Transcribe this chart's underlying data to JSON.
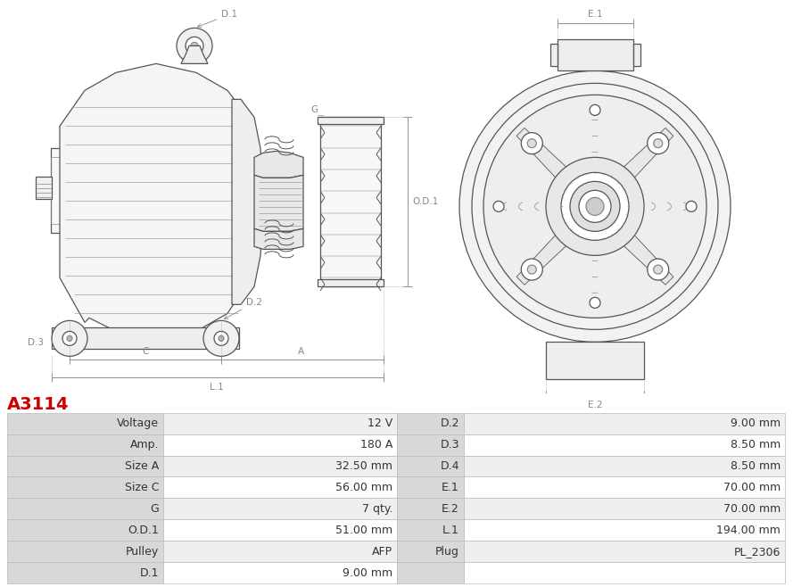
{
  "title": "A3114",
  "title_color": "#cc0000",
  "table_headers_left": [
    "Voltage",
    "Amp.",
    "Size A",
    "Size C",
    "G",
    "O.D.1",
    "Pulley",
    "D.1"
  ],
  "table_values_left": [
    "12 V",
    "180 A",
    "32.50 mm",
    "56.00 mm",
    "7 qty.",
    "51.00 mm",
    "AFP",
    "9.00 mm"
  ],
  "table_headers_right": [
    "D.2",
    "D.3",
    "D.4",
    "E.1",
    "E.2",
    "L.1",
    "Plug",
    ""
  ],
  "table_values_right": [
    "9.00 mm",
    "8.50 mm",
    "8.50 mm",
    "70.00 mm",
    "70.00 mm",
    "194.00 mm",
    "PL_2306",
    ""
  ],
  "border_color": "#bbbbbb",
  "header_bg": "#d8d8d8",
  "row_bg_odd": "#efefef",
  "row_bg_even": "#ffffff",
  "text_color": "#333333",
  "font_size": 9,
  "line_color": "#555555",
  "line_color2": "#888888",
  "dim_color": "#888888"
}
